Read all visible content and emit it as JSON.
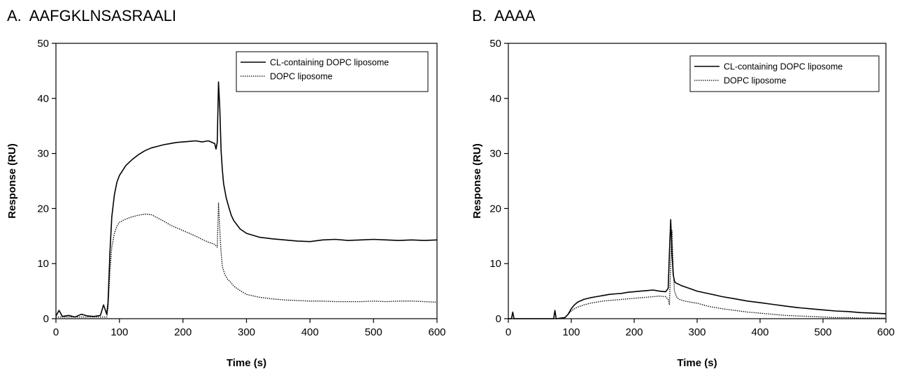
{
  "panels": [
    {
      "title": "A.  AAFGKLNSASRAALI",
      "chart_data": {
        "type": "line",
        "xlabel": "Time (s)",
        "ylabel": "Response (RU)",
        "xlim": [
          0,
          600
        ],
        "ylim": [
          0,
          50
        ],
        "xticks": [
          0,
          100,
          200,
          300,
          400,
          500,
          600
        ],
        "yticks": [
          0,
          10,
          20,
          30,
          40,
          50
        ],
        "grid": false,
        "legend": "top-right",
        "series": [
          {
            "name": "CL-containing DOPC liposome",
            "style": "solid",
            "x": [
              0,
              5,
              10,
              20,
              30,
              40,
              50,
              60,
              70,
              75,
              80,
              82,
              85,
              88,
              92,
              96,
              100,
              110,
              120,
              130,
              140,
              150,
              160,
              170,
              180,
              190,
              200,
              210,
              220,
              230,
              240,
              250,
              252,
              254,
              256,
              258,
              260,
              262,
              264,
              268,
              272,
              276,
              280,
              290,
              300,
              320,
              340,
              360,
              380,
              400,
              420,
              440,
              460,
              480,
              500,
              520,
              540,
              560,
              580,
              600
            ],
            "y": [
              0.5,
              1.5,
              0.4,
              0.6,
              0.3,
              0.8,
              0.5,
              0.4,
              0.6,
              2.5,
              0.8,
              3.0,
              12.0,
              18.5,
              22.5,
              24.8,
              26.0,
              27.8,
              28.9,
              29.8,
              30.5,
              31.0,
              31.3,
              31.6,
              31.8,
              32.0,
              32.1,
              32.2,
              32.3,
              32.1,
              32.3,
              31.8,
              30.8,
              32.0,
              43.0,
              38.0,
              30.5,
              27.0,
              24.5,
              22.0,
              20.3,
              18.8,
              17.8,
              16.3,
              15.5,
              14.8,
              14.5,
              14.3,
              14.1,
              14.0,
              14.3,
              14.4,
              14.2,
              14.3,
              14.4,
              14.3,
              14.2,
              14.3,
              14.2,
              14.3
            ]
          },
          {
            "name": "DOPC liposome",
            "style": "dotted",
            "x": [
              0,
              20,
              40,
              60,
              80,
              82,
              85,
              88,
              92,
              96,
              100,
              110,
              120,
              130,
              140,
              150,
              160,
              170,
              180,
              190,
              200,
              210,
              220,
              230,
              240,
              250,
              254,
              256,
              258,
              260,
              262,
              266,
              270,
              276,
              280,
              290,
              300,
              320,
              340,
              360,
              380,
              400,
              420,
              440,
              460,
              480,
              500,
              520,
              540,
              560,
              580,
              600
            ],
            "y": [
              0.3,
              0.3,
              0.3,
              0.3,
              0.3,
              2.0,
              8.5,
              13.0,
              15.5,
              16.8,
              17.5,
              18.1,
              18.5,
              18.8,
              19.0,
              18.9,
              18.3,
              17.7,
              17.0,
              16.5,
              16.0,
              15.5,
              15.0,
              14.4,
              13.9,
              13.5,
              13.0,
              21.0,
              16.0,
              12.0,
              9.5,
              8.0,
              7.2,
              6.5,
              5.9,
              5.1,
              4.4,
              3.9,
              3.6,
              3.4,
              3.3,
              3.2,
              3.2,
              3.1,
              3.1,
              3.1,
              3.2,
              3.1,
              3.2,
              3.2,
              3.1,
              3.0
            ]
          }
        ]
      }
    },
    {
      "title": "B.  AAAA",
      "chart_data": {
        "type": "line",
        "xlabel": "Time (s)",
        "ylabel": "Response (RU)",
        "xlim": [
          0,
          600
        ],
        "ylim": [
          0,
          50
        ],
        "xticks": [
          0,
          100,
          200,
          300,
          400,
          500,
          600
        ],
        "yticks": [
          0,
          10,
          20,
          30,
          40,
          50
        ],
        "grid": false,
        "legend": "top-right",
        "series": [
          {
            "name": "CL-containing DOPC liposome",
            "style": "solid",
            "x": [
              0,
              5,
              7,
              9,
              20,
              40,
              60,
              72,
              74,
              76,
              90,
              95,
              100,
              105,
              110,
              120,
              130,
              140,
              150,
              160,
              170,
              180,
              190,
              200,
              210,
              220,
              230,
              240,
              250,
              254,
              256,
              258,
              260,
              262,
              264,
              266,
              270,
              275,
              280,
              290,
              300,
              320,
              340,
              360,
              380,
              400,
              420,
              440,
              460,
              480,
              500,
              520,
              540,
              560,
              580,
              600
            ],
            "y": [
              0.0,
              0.0,
              1.2,
              0.0,
              0.0,
              0.0,
              0.0,
              0.0,
              1.5,
              0.0,
              0.2,
              0.8,
              1.8,
              2.5,
              3.0,
              3.5,
              3.8,
              4.0,
              4.2,
              4.4,
              4.5,
              4.6,
              4.8,
              4.9,
              5.0,
              5.1,
              5.2,
              5.0,
              4.9,
              5.5,
              12.0,
              18.0,
              12.0,
              8.0,
              6.8,
              6.5,
              6.3,
              6.0,
              5.8,
              5.4,
              5.0,
              4.5,
              4.0,
              3.6,
              3.2,
              2.9,
              2.6,
              2.3,
              2.0,
              1.8,
              1.6,
              1.4,
              1.3,
              1.1,
              1.0,
              0.9
            ]
          },
          {
            "name": "DOPC liposome",
            "style": "dotted",
            "x": [
              0,
              20,
              40,
              60,
              80,
              90,
              95,
              100,
              105,
              110,
              120,
              130,
              140,
              150,
              160,
              170,
              180,
              190,
              200,
              210,
              220,
              230,
              240,
              250,
              254,
              256,
              258,
              260,
              262,
              264,
              268,
              272,
              280,
              290,
              300,
              320,
              340,
              360,
              380,
              400,
              420,
              440,
              460,
              480,
              500,
              520,
              540,
              560,
              580,
              600
            ],
            "y": [
              0.0,
              0.0,
              0.0,
              0.0,
              0.0,
              0.2,
              0.8,
              1.4,
              1.8,
              2.1,
              2.5,
              2.8,
              3.0,
              3.2,
              3.3,
              3.4,
              3.5,
              3.6,
              3.7,
              3.8,
              3.9,
              4.0,
              4.1,
              4.0,
              3.5,
              2.5,
              10.0,
              16.0,
              9.0,
              5.0,
              3.8,
              3.5,
              3.2,
              3.0,
              2.8,
              2.2,
              1.8,
              1.5,
              1.2,
              1.0,
              0.8,
              0.6,
              0.5,
              0.4,
              0.3,
              0.2,
              0.2,
              0.1,
              0.1,
              0.1
            ]
          }
        ]
      }
    }
  ]
}
